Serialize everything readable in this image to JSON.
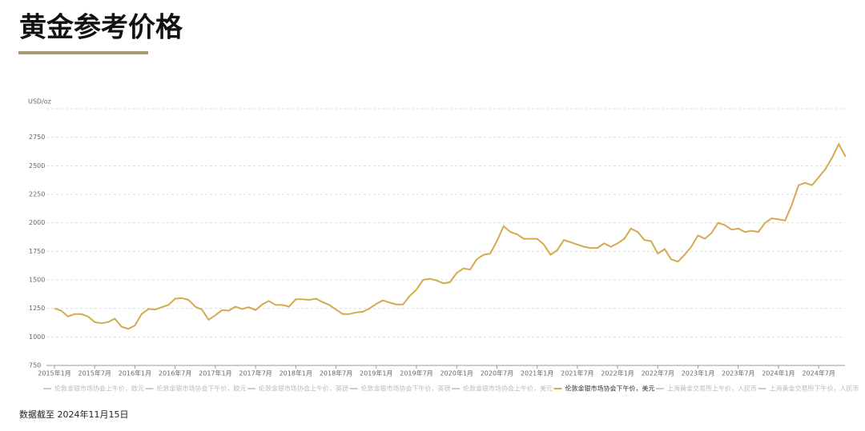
{
  "title": "黄金参考价格",
  "footnote": "数据截至 2024年11月15日",
  "chart_data": {
    "type": "line",
    "y_unit": "USD/oz",
    "x": [
      "2015-01",
      "2015-02",
      "2015-03",
      "2015-04",
      "2015-05",
      "2015-06",
      "2015-07",
      "2015-08",
      "2015-09",
      "2015-10",
      "2015-11",
      "2015-12",
      "2016-01",
      "2016-02",
      "2016-03",
      "2016-04",
      "2016-05",
      "2016-06",
      "2016-07",
      "2016-08",
      "2016-09",
      "2016-10",
      "2016-11",
      "2016-12",
      "2017-01",
      "2017-02",
      "2017-03",
      "2017-04",
      "2017-05",
      "2017-06",
      "2017-07",
      "2017-08",
      "2017-09",
      "2017-10",
      "2017-11",
      "2017-12",
      "2018-01",
      "2018-02",
      "2018-03",
      "2018-04",
      "2018-05",
      "2018-06",
      "2018-07",
      "2018-08",
      "2018-09",
      "2018-10",
      "2018-11",
      "2018-12",
      "2019-01",
      "2019-02",
      "2019-03",
      "2019-04",
      "2019-05",
      "2019-06",
      "2019-07",
      "2019-08",
      "2019-09",
      "2019-10",
      "2019-11",
      "2019-12",
      "2020-01",
      "2020-02",
      "2020-03",
      "2020-04",
      "2020-05",
      "2020-06",
      "2020-07",
      "2020-08",
      "2020-09",
      "2020-10",
      "2020-11",
      "2020-12",
      "2021-01",
      "2021-02",
      "2021-03",
      "2021-04",
      "2021-05",
      "2021-06",
      "2021-07",
      "2021-08",
      "2021-09",
      "2021-10",
      "2021-11",
      "2021-12",
      "2022-01",
      "2022-02",
      "2022-03",
      "2022-04",
      "2022-05",
      "2022-06",
      "2022-07",
      "2022-08",
      "2022-09",
      "2022-10",
      "2022-11",
      "2022-12",
      "2023-01",
      "2023-02",
      "2023-03",
      "2023-04",
      "2023-05",
      "2023-06",
      "2023-07",
      "2023-08",
      "2023-09",
      "2023-10",
      "2023-11",
      "2023-12",
      "2024-01",
      "2024-02",
      "2024-03",
      "2024-04",
      "2024-05",
      "2024-06",
      "2024-07",
      "2024-08",
      "2024-09",
      "2024-10",
      "2024-11"
    ],
    "series": [
      {
        "name": "伦敦金银市场协会下午价，美元",
        "color": "#d4aa50",
        "values": [
          1250,
          1230,
          1180,
          1200,
          1200,
          1180,
          1130,
          1120,
          1130,
          1160,
          1090,
          1070,
          1100,
          1200,
          1245,
          1240,
          1260,
          1280,
          1335,
          1340,
          1325,
          1265,
          1240,
          1150,
          1190,
          1235,
          1230,
          1265,
          1245,
          1260,
          1235,
          1285,
          1315,
          1280,
          1280,
          1265,
          1330,
          1330,
          1325,
          1335,
          1305,
          1280,
          1240,
          1200,
          1200,
          1215,
          1220,
          1250,
          1290,
          1320,
          1300,
          1285,
          1285,
          1360,
          1415,
          1500,
          1510,
          1495,
          1470,
          1480,
          1560,
          1600,
          1590,
          1680,
          1720,
          1730,
          1840,
          1970,
          1920,
          1900,
          1860,
          1860,
          1860,
          1810,
          1720,
          1760,
          1850,
          1830,
          1810,
          1790,
          1780,
          1780,
          1820,
          1790,
          1820,
          1860,
          1950,
          1920,
          1850,
          1840,
          1730,
          1770,
          1680,
          1660,
          1720,
          1790,
          1890,
          1860,
          1910,
          2000,
          1980,
          1940,
          1950,
          1920,
          1930,
          1920,
          2000,
          2040,
          2030,
          2020,
          2160,
          2330,
          2350,
          2330,
          2400,
          2470,
          2570,
          2690,
          2580
        ]
      }
    ],
    "hidden_series": [
      {
        "name": "伦敦金银市场协会上午价，欧元"
      },
      {
        "name": "伦敦金银市场协会下午价，欧元"
      },
      {
        "name": "伦敦金银市场协会上午价，英镑"
      },
      {
        "name": "伦敦金银市场协会下午价，英镑"
      },
      {
        "name": "伦敦金银市场协会上午价，美元"
      },
      {
        "name": "上海黄金交易所上午价，人民币"
      },
      {
        "name": "上海黄金交易所下午价，人民币"
      }
    ],
    "hidden_color": "#cccccc",
    "ylim": [
      750,
      3000
    ],
    "yticks": [
      750,
      1000,
      1250,
      1500,
      1750,
      2000,
      2250,
      2500,
      2750
    ],
    "grid": true,
    "xticks": [
      {
        "value": "2015-01",
        "label": "2015年1月"
      },
      {
        "value": "2015-07",
        "label": "2015年7月"
      },
      {
        "value": "2016-01",
        "label": "2016年1月"
      },
      {
        "value": "2016-07",
        "label": "2016年7月"
      },
      {
        "value": "2017-01",
        "label": "2017年1月"
      },
      {
        "value": "2017-07",
        "label": "2017年7月"
      },
      {
        "value": "2018-01",
        "label": "2018年1月"
      },
      {
        "value": "2018-07",
        "label": "2018年7月"
      },
      {
        "value": "2019-01",
        "label": "2019年1月"
      },
      {
        "value": "2019-07",
        "label": "2019年7月"
      },
      {
        "value": "2020-01",
        "label": "2020年1月"
      },
      {
        "value": "2020-07",
        "label": "2020年7月"
      },
      {
        "value": "2021-01",
        "label": "2021年1月"
      },
      {
        "value": "2021-07",
        "label": "2021年7月"
      },
      {
        "value": "2022-01",
        "label": "2022年1月"
      },
      {
        "value": "2022-07",
        "label": "2022年7月"
      },
      {
        "value": "2023-01",
        "label": "2023年1月"
      },
      {
        "value": "2023-07",
        "label": "2023年7月"
      },
      {
        "value": "2024-01",
        "label": "2024年1月"
      },
      {
        "value": "2024-07",
        "label": "2024年7月"
      }
    ]
  }
}
